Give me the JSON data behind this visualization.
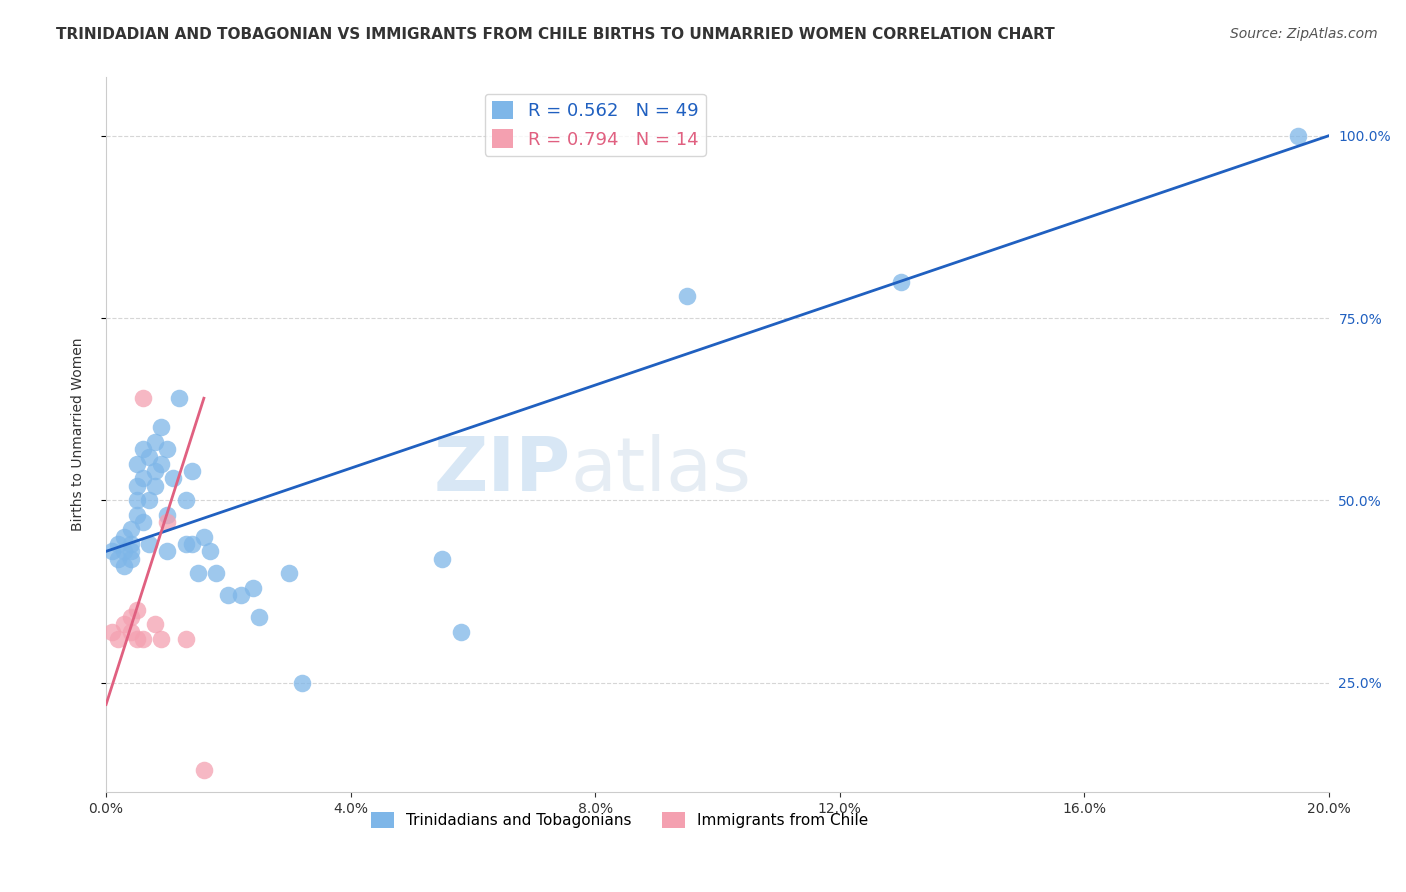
{
  "title": "TRINIDADIAN AND TOBAGONIAN VS IMMIGRANTS FROM CHILE BIRTHS TO UNMARRIED WOMEN CORRELATION CHART",
  "source": "Source: ZipAtlas.com",
  "ylabel": "Births to Unmarried Women",
  "right_yticks": [
    0.25,
    0.5,
    0.75,
    1.0
  ],
  "right_yticklabels": [
    "25.0%",
    "50.0%",
    "75.0%",
    "100.0%"
  ],
  "xlim": [
    0.0,
    0.2
  ],
  "ylim": [
    0.1,
    1.08
  ],
  "blue_R": 0.562,
  "blue_N": 49,
  "pink_R": 0.794,
  "pink_N": 14,
  "blue_color": "#7EB6E8",
  "pink_color": "#F4A0B0",
  "blue_line_color": "#2060C0",
  "pink_line_color": "#E06080",
  "watermark_zip": "ZIP",
  "watermark_atlas": "atlas",
  "blue_scatter_x": [
    0.001,
    0.002,
    0.002,
    0.003,
    0.003,
    0.003,
    0.004,
    0.004,
    0.004,
    0.004,
    0.005,
    0.005,
    0.005,
    0.005,
    0.006,
    0.006,
    0.006,
    0.007,
    0.007,
    0.007,
    0.008,
    0.008,
    0.008,
    0.009,
    0.009,
    0.01,
    0.01,
    0.01,
    0.011,
    0.012,
    0.013,
    0.013,
    0.014,
    0.014,
    0.015,
    0.016,
    0.017,
    0.018,
    0.02,
    0.022,
    0.024,
    0.025,
    0.03,
    0.032,
    0.055,
    0.058,
    0.095,
    0.13,
    0.195
  ],
  "blue_scatter_y": [
    0.43,
    0.42,
    0.44,
    0.41,
    0.43,
    0.45,
    0.42,
    0.44,
    0.46,
    0.43,
    0.55,
    0.48,
    0.5,
    0.52,
    0.53,
    0.57,
    0.47,
    0.56,
    0.5,
    0.44,
    0.54,
    0.52,
    0.58,
    0.6,
    0.55,
    0.57,
    0.48,
    0.43,
    0.53,
    0.64,
    0.44,
    0.5,
    0.54,
    0.44,
    0.4,
    0.45,
    0.43,
    0.4,
    0.37,
    0.37,
    0.38,
    0.34,
    0.4,
    0.25,
    0.42,
    0.32,
    0.78,
    0.8,
    1.0
  ],
  "pink_scatter_x": [
    0.001,
    0.002,
    0.003,
    0.004,
    0.004,
    0.005,
    0.005,
    0.006,
    0.006,
    0.008,
    0.009,
    0.01,
    0.013,
    0.016
  ],
  "pink_scatter_y": [
    0.32,
    0.31,
    0.33,
    0.34,
    0.32,
    0.35,
    0.31,
    0.64,
    0.31,
    0.33,
    0.31,
    0.47,
    0.31,
    0.13
  ],
  "blue_line_x0": 0.0,
  "blue_line_x1": 0.2,
  "blue_line_y0": 0.43,
  "blue_line_y1": 1.0,
  "pink_line_x0": 0.0,
  "pink_line_x1": 0.016,
  "pink_line_y0": 0.22,
  "pink_line_y1": 0.64,
  "grid_color": "#CCCCCC",
  "title_fontsize": 11,
  "axis_label_fontsize": 10,
  "tick_fontsize": 10,
  "legend_fontsize": 13,
  "source_fontsize": 10
}
